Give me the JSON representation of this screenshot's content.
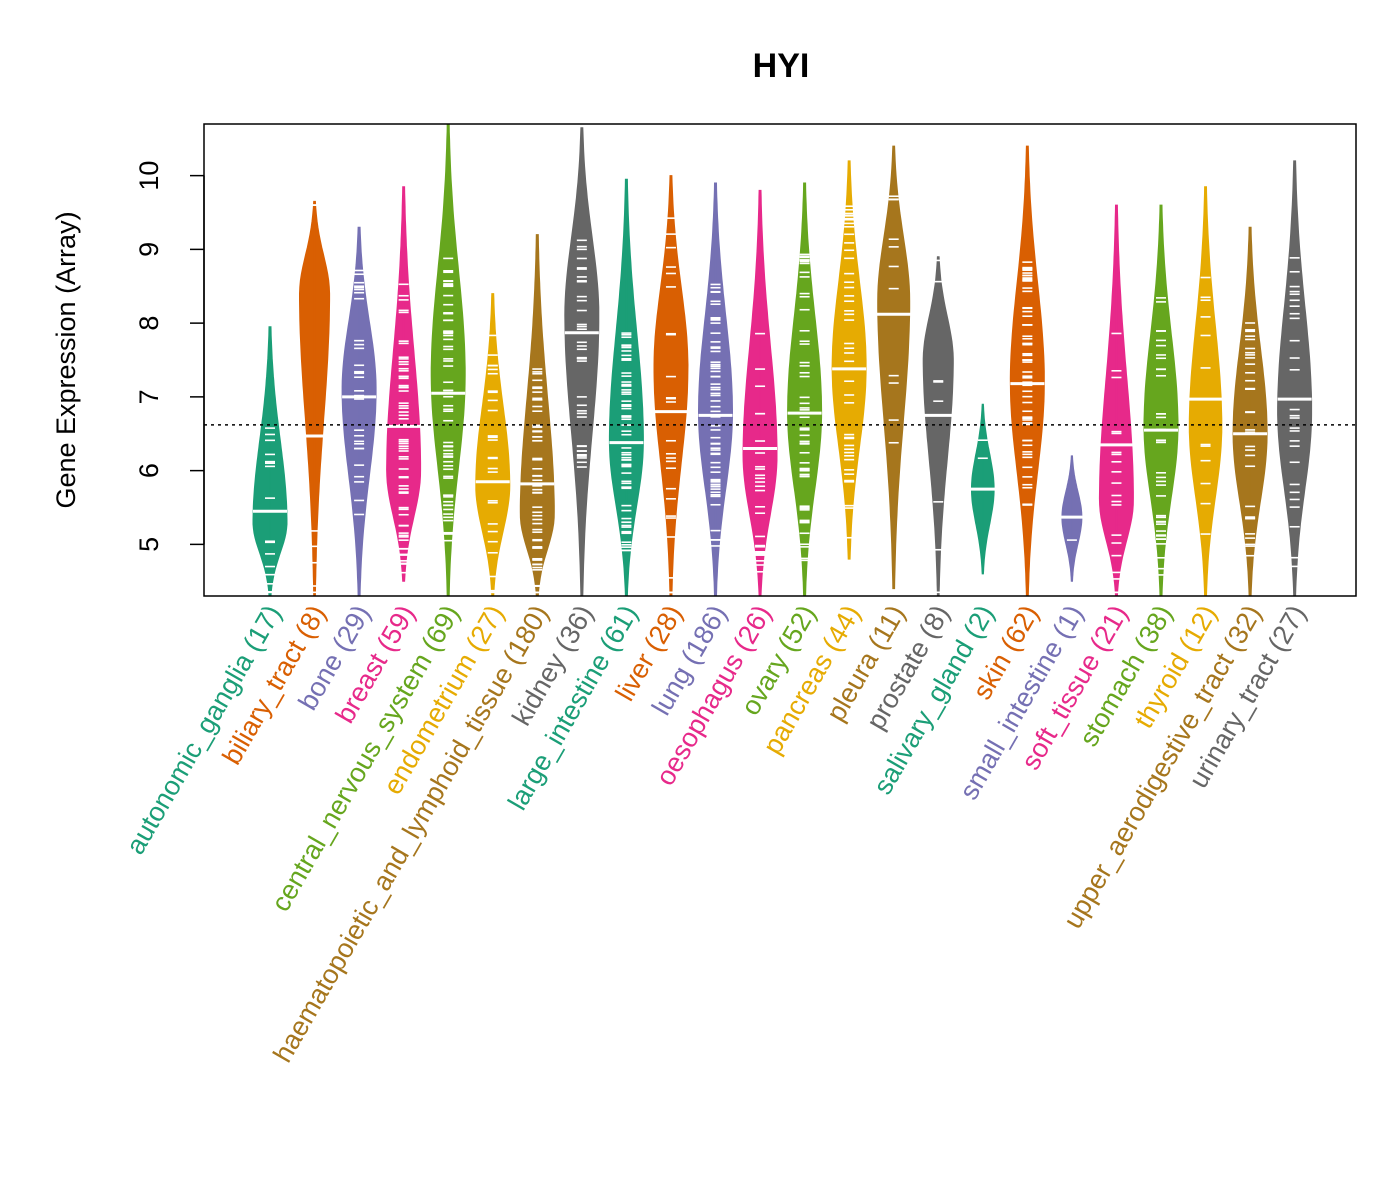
{
  "chart_data": {
    "type": "violin",
    "title": "HYI",
    "ylabel": "Gene Expression (Array)",
    "xlabel": "",
    "ylim": [
      4.3,
      10.7
    ],
    "yticks": [
      5,
      6,
      7,
      8,
      9,
      10
    ],
    "reference_line": 6.62,
    "grid": false,
    "categories": [
      {
        "name": "autonomic_ganglia",
        "n": 17,
        "color": "#1b9e77",
        "min": 4.3,
        "max": 7.95,
        "mode": 5.3,
        "median": 5.45,
        "q1": 5.0,
        "q3": 5.85
      },
      {
        "name": "biliary_tract",
        "n": 8,
        "color": "#d95f02",
        "min": 4.3,
        "max": 9.65,
        "mode": 8.4,
        "median": 6.47,
        "q1": 5.6,
        "q3": 8.3
      },
      {
        "name": "bone",
        "n": 29,
        "color": "#7570b3",
        "min": 4.3,
        "max": 9.3,
        "mode": 7.1,
        "median": 7.0,
        "q1": 6.35,
        "q3": 7.6
      },
      {
        "name": "breast",
        "n": 59,
        "color": "#e7298a",
        "min": 4.5,
        "max": 9.85,
        "mode": 6.0,
        "median": 6.6,
        "q1": 5.85,
        "q3": 7.3
      },
      {
        "name": "central_nervous_system",
        "n": 69,
        "color": "#66a61e",
        "min": 4.3,
        "max": 10.7,
        "mode": 7.3,
        "median": 7.05,
        "q1": 6.3,
        "q3": 7.7
      },
      {
        "name": "endometrium",
        "n": 27,
        "color": "#e6ab02",
        "min": 4.3,
        "max": 8.4,
        "mode": 5.8,
        "median": 5.85,
        "q1": 5.2,
        "q3": 6.6
      },
      {
        "name": "haematopoietic_and_lymphoid_tissue",
        "n": 180,
        "color": "#a6761d",
        "min": 4.3,
        "max": 9.2,
        "mode": 5.4,
        "median": 5.82,
        "q1": 5.2,
        "q3": 6.4
      },
      {
        "name": "kidney",
        "n": 36,
        "color": "#666666",
        "min": 4.3,
        "max": 10.65,
        "mode": 8.1,
        "median": 7.87,
        "q1": 7.2,
        "q3": 8.5
      },
      {
        "name": "large_intestine",
        "n": 61,
        "color": "#1b9e77",
        "min": 4.3,
        "max": 9.95,
        "mode": 6.4,
        "median": 6.38,
        "q1": 5.8,
        "q3": 6.9
      },
      {
        "name": "liver",
        "n": 28,
        "color": "#d95f02",
        "min": 4.3,
        "max": 10.0,
        "mode": 7.4,
        "median": 6.8,
        "q1": 5.5,
        "q3": 7.6
      },
      {
        "name": "lung",
        "n": 186,
        "color": "#7570b3",
        "min": 4.3,
        "max": 9.9,
        "mode": 6.8,
        "median": 6.75,
        "q1": 6.1,
        "q3": 7.4
      },
      {
        "name": "oesophagus",
        "n": 26,
        "color": "#e7298a",
        "min": 4.3,
        "max": 9.8,
        "mode": 6.2,
        "median": 6.3,
        "q1": 5.7,
        "q3": 6.9
      },
      {
        "name": "ovary",
        "n": 52,
        "color": "#66a61e",
        "min": 4.3,
        "max": 9.9,
        "mode": 6.8,
        "median": 6.78,
        "q1": 6.0,
        "q3": 7.6
      },
      {
        "name": "pancreas",
        "n": 44,
        "color": "#e6ab02",
        "min": 4.8,
        "max": 10.2,
        "mode": 7.4,
        "median": 7.38,
        "q1": 6.6,
        "q3": 8.3
      },
      {
        "name": "pleura",
        "n": 11,
        "color": "#a6761d",
        "min": 4.4,
        "max": 10.4,
        "mode": 8.3,
        "median": 8.12,
        "q1": 7.5,
        "q3": 8.8
      },
      {
        "name": "prostate",
        "n": 8,
        "color": "#666666",
        "min": 4.3,
        "max": 8.9,
        "mode": 7.5,
        "median": 6.75,
        "q1": 5.4,
        "q3": 7.5
      },
      {
        "name": "salivary_gland",
        "n": 2,
        "color": "#1b9e77",
        "min": 4.6,
        "max": 6.9,
        "mode": 5.75,
        "median": 5.75,
        "q1": 5.4,
        "q3": 6.1
      },
      {
        "name": "skin",
        "n": 62,
        "color": "#d95f02",
        "min": 4.3,
        "max": 10.4,
        "mode": 7.2,
        "median": 7.18,
        "q1": 6.6,
        "q3": 7.8
      },
      {
        "name": "small_intestine",
        "n": 1,
        "color": "#7570b3",
        "min": 4.5,
        "max": 6.2,
        "mode": 5.37,
        "median": 5.37,
        "q1": 5.1,
        "q3": 5.7
      },
      {
        "name": "soft_tissue",
        "n": 21,
        "color": "#e7298a",
        "min": 4.3,
        "max": 9.6,
        "mode": 5.6,
        "median": 6.35,
        "q1": 5.4,
        "q3": 6.9
      },
      {
        "name": "stomach",
        "n": 38,
        "color": "#66a61e",
        "min": 4.3,
        "max": 9.6,
        "mode": 6.6,
        "median": 6.55,
        "q1": 5.8,
        "q3": 7.2
      },
      {
        "name": "thyroid",
        "n": 12,
        "color": "#e6ab02",
        "min": 4.3,
        "max": 9.85,
        "mode": 6.6,
        "median": 6.97,
        "q1": 6.3,
        "q3": 7.8
      },
      {
        "name": "upper_aerodigestive_tract",
        "n": 32,
        "color": "#a6761d",
        "min": 4.3,
        "max": 9.3,
        "mode": 6.5,
        "median": 6.5,
        "q1": 5.9,
        "q3": 7.1
      },
      {
        "name": "urinary_tract",
        "n": 27,
        "color": "#666666",
        "min": 4.3,
        "max": 10.2,
        "mode": 6.8,
        "median": 6.97,
        "q1": 6.1,
        "q3": 7.7
      }
    ]
  }
}
